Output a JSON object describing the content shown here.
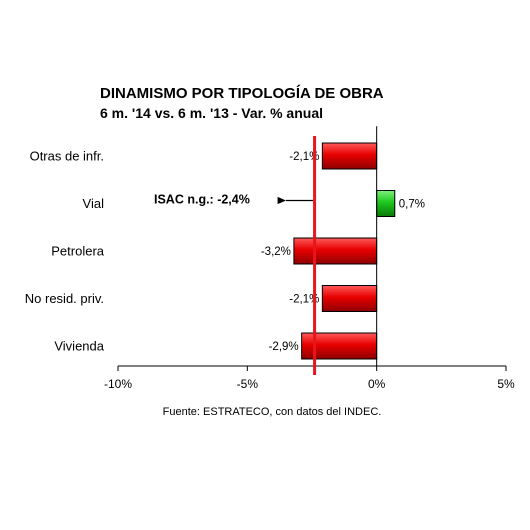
{
  "chart_data": {
    "type": "bar",
    "orientation": "horizontal",
    "title": "DINAMISMO POR TIPOLOGÍA DE OBRA",
    "subtitle": "6 m. '14 vs. 6 m. '13 - Var. % anual",
    "categories": [
      "Otras de infr.",
      "Vial",
      "Petrolera",
      "No resid. priv.",
      "Vivienda"
    ],
    "values": [
      -2.1,
      0.7,
      -3.2,
      -2.1,
      -2.9
    ],
    "value_labels": [
      "-2,1%",
      "0,7%",
      "-3,2%",
      "-2,1%",
      "-2,9%"
    ],
    "xlim": [
      -10,
      5
    ],
    "xticks": [
      -10,
      -5,
      0,
      5
    ],
    "xtick_labels": [
      "-10%",
      "-5%",
      "0%",
      "5%"
    ],
    "reference_line": {
      "value": -2.4,
      "label": "ISAC n.g.: -2,4%",
      "color": "#e8141e"
    },
    "colors": {
      "negative": "#e00000",
      "positive": "#19c81e",
      "reference": "#e8141e"
    },
    "source": "Fuente: ESTRATECO, con datos del INDEC."
  }
}
